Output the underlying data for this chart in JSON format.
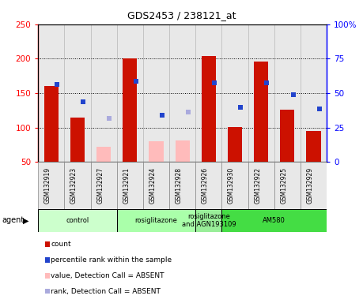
{
  "title": "GDS2453 / 238121_at",
  "samples": [
    "GSM132919",
    "GSM132923",
    "GSM132927",
    "GSM132921",
    "GSM132924",
    "GSM132928",
    "GSM132926",
    "GSM132930",
    "GSM132922",
    "GSM132925",
    "GSM132929"
  ],
  "bar_values": [
    160,
    115,
    null,
    201,
    null,
    null,
    204,
    101,
    196,
    126,
    95
  ],
  "bar_absent_values": [
    null,
    null,
    72,
    null,
    80,
    81,
    null,
    null,
    null,
    null,
    null
  ],
  "dot_values": [
    163,
    137,
    null,
    167,
    118,
    null,
    165,
    130,
    165,
    148,
    127
  ],
  "dot_absent_values": [
    null,
    null,
    114,
    null,
    null,
    123,
    null,
    null,
    null,
    null,
    null
  ],
  "bar_color": "#cc1100",
  "bar_absent_color": "#ffbbbb",
  "dot_color": "#2244cc",
  "dot_absent_color": "#aaaadd",
  "ylim_left": [
    50,
    250
  ],
  "ylim_right": [
    0,
    100
  ],
  "yticks_left": [
    50,
    100,
    150,
    200,
    250
  ],
  "yticks_right": [
    0,
    25,
    50,
    75,
    100
  ],
  "ytick_labels_left": [
    "50",
    "100",
    "150",
    "200",
    "250"
  ],
  "ytick_labels_right": [
    "0",
    "25",
    "50",
    "75",
    "100%"
  ],
  "groups": [
    {
      "label": "control",
      "start": 0,
      "end": 3,
      "color": "#ccffcc"
    },
    {
      "label": "rosiglitazone",
      "start": 3,
      "end": 6,
      "color": "#aaffaa"
    },
    {
      "label": "rosiglitazone\nand AGN193109",
      "start": 6,
      "end": 7,
      "color": "#99ee99"
    },
    {
      "label": "AM580",
      "start": 7,
      "end": 11,
      "color": "#44dd44"
    }
  ],
  "agent_label": "agent",
  "legend_items": [
    {
      "label": "count",
      "color": "#cc1100"
    },
    {
      "label": "percentile rank within the sample",
      "color": "#2244cc"
    },
    {
      "label": "value, Detection Call = ABSENT",
      "color": "#ffbbbb"
    },
    {
      "label": "rank, Detection Call = ABSENT",
      "color": "#aaaadd"
    }
  ],
  "bg_color": "#e8e8e8",
  "plot_bg": "#ffffff"
}
